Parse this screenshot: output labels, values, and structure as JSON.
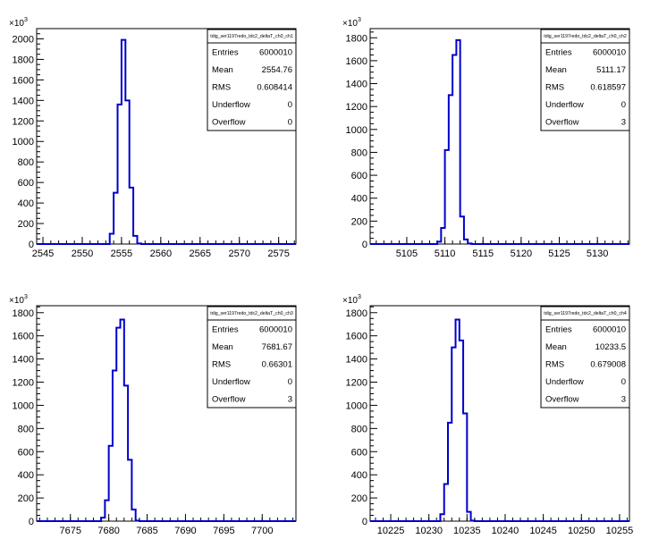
{
  "chart_data": [
    {
      "type": "histogram",
      "title": "tdig_ser1197redo_tdc2_deltaT_ch0_ch1",
      "y_multiplier_label": "×10",
      "y_multiplier_exp": "3",
      "xlim": [
        2544.2,
        2577.2
      ],
      "ylim": [
        0,
        2100
      ],
      "bin_width": 0.5,
      "x_ticks": [
        2545,
        2550,
        2555,
        2560,
        2565,
        2570,
        2575
      ],
      "x_minor_step": 1,
      "y_ticks": [
        0,
        200,
        400,
        600,
        800,
        1000,
        1200,
        1400,
        1600,
        1800,
        2000
      ],
      "bins": [
        {
          "x": 2553.0,
          "y": 0
        },
        {
          "x": 2553.5,
          "y": 100
        },
        {
          "x": 2554.0,
          "y": 500
        },
        {
          "x": 2554.5,
          "y": 1360
        },
        {
          "x": 2555.0,
          "y": 1990
        },
        {
          "x": 2555.5,
          "y": 1400
        },
        {
          "x": 2556.0,
          "y": 550
        },
        {
          "x": 2556.5,
          "y": 80
        },
        {
          "x": 2557.0,
          "y": 5
        },
        {
          "x": 2557.5,
          "y": 0
        }
      ],
      "stats": [
        {
          "label": "Entries",
          "value": "6000010"
        },
        {
          "label": "Mean",
          "value": "2554.76"
        },
        {
          "label": "RMS",
          "value": "0.608414"
        },
        {
          "label": "Underflow",
          "value": "0"
        },
        {
          "label": "Overflow",
          "value": "0"
        }
      ],
      "line_color": "#0000cc"
    },
    {
      "type": "histogram",
      "title": "tdig_ser1197redo_tdc2_deltaT_ch0_ch2",
      "y_multiplier_label": "×10",
      "y_multiplier_exp": "3",
      "xlim": [
        5100.2,
        5134.2
      ],
      "ylim": [
        0,
        1880
      ],
      "bin_width": 0.5,
      "x_ticks": [
        5105,
        5110,
        5115,
        5120,
        5125,
        5130
      ],
      "x_minor_step": 1,
      "y_ticks": [
        0,
        200,
        400,
        600,
        800,
        1000,
        1200,
        1400,
        1600,
        1800
      ],
      "bins": [
        {
          "x": 5108.5,
          "y": 0
        },
        {
          "x": 5109.0,
          "y": 20
        },
        {
          "x": 5109.5,
          "y": 140
        },
        {
          "x": 5110.0,
          "y": 820
        },
        {
          "x": 5110.5,
          "y": 1300
        },
        {
          "x": 5111.0,
          "y": 1650
        },
        {
          "x": 5111.5,
          "y": 1780
        },
        {
          "x": 5112.0,
          "y": 240
        },
        {
          "x": 5112.5,
          "y": 40
        },
        {
          "x": 5113.0,
          "y": 5
        },
        {
          "x": 5113.5,
          "y": 0
        }
      ],
      "stats": [
        {
          "label": "Entries",
          "value": "6000010"
        },
        {
          "label": "Mean",
          "value": "5111.17"
        },
        {
          "label": "RMS",
          "value": "0.618597"
        },
        {
          "label": "Underflow",
          "value": "0"
        },
        {
          "label": "Overflow",
          "value": "3"
        }
      ],
      "line_color": "#0000cc"
    },
    {
      "type": "histogram",
      "title": "tdig_ser1197redo_tdc2_deltaT_ch0_ch3",
      "y_multiplier_label": "×10",
      "y_multiplier_exp": "3",
      "xlim": [
        7670.6,
        7704.4
      ],
      "ylim": [
        0,
        1860
      ],
      "bin_width": 0.5,
      "x_ticks": [
        7675,
        7680,
        7685,
        7690,
        7695,
        7700
      ],
      "x_minor_step": 1,
      "y_ticks": [
        0,
        200,
        400,
        600,
        800,
        1000,
        1200,
        1400,
        1600,
        1800
      ],
      "bins": [
        {
          "x": 7678.5,
          "y": 0
        },
        {
          "x": 7679.0,
          "y": 30
        },
        {
          "x": 7679.5,
          "y": 180
        },
        {
          "x": 7680.0,
          "y": 650
        },
        {
          "x": 7680.5,
          "y": 1300
        },
        {
          "x": 7681.0,
          "y": 1670
        },
        {
          "x": 7681.5,
          "y": 1740
        },
        {
          "x": 7682.0,
          "y": 1170
        },
        {
          "x": 7682.5,
          "y": 530
        },
        {
          "x": 7683.0,
          "y": 100
        },
        {
          "x": 7683.5,
          "y": 5
        },
        {
          "x": 7684.0,
          "y": 0
        }
      ],
      "stats": [
        {
          "label": "Entries",
          "value": "6000010"
        },
        {
          "label": "Mean",
          "value": "7681.67"
        },
        {
          "label": "RMS",
          "value": "0.66301"
        },
        {
          "label": "Underflow",
          "value": "0"
        },
        {
          "label": "Overflow",
          "value": "3"
        }
      ],
      "line_color": "#0000cc"
    },
    {
      "type": "histogram",
      "title": "tdig_ser1197redo_tdc2_deltaT_ch0_ch4",
      "y_multiplier_label": "×10",
      "y_multiplier_exp": "3",
      "xlim": [
        10222.3,
        10256.3
      ],
      "ylim": [
        0,
        1860
      ],
      "bin_width": 0.5,
      "x_ticks": [
        10225,
        10230,
        10235,
        10240,
        10245,
        10250,
        10255
      ],
      "x_minor_step": 1,
      "y_ticks": [
        0,
        200,
        400,
        600,
        800,
        1000,
        1200,
        1400,
        1600,
        1800
      ],
      "bins": [
        {
          "x": 10231.0,
          "y": 0
        },
        {
          "x": 10231.5,
          "y": 60
        },
        {
          "x": 10232.0,
          "y": 320
        },
        {
          "x": 10232.5,
          "y": 850
        },
        {
          "x": 10233.0,
          "y": 1500
        },
        {
          "x": 10233.5,
          "y": 1740
        },
        {
          "x": 10234.0,
          "y": 1560
        },
        {
          "x": 10234.5,
          "y": 930
        },
        {
          "x": 10235.0,
          "y": 80
        },
        {
          "x": 10235.5,
          "y": 5
        },
        {
          "x": 10236.0,
          "y": 0
        }
      ],
      "stats": [
        {
          "label": "Entries",
          "value": "6000010"
        },
        {
          "label": "Mean",
          "value": "10233.5"
        },
        {
          "label": "RMS",
          "value": "0.679008"
        },
        {
          "label": "Underflow",
          "value": "0"
        },
        {
          "label": "Overflow",
          "value": "3"
        }
      ],
      "line_color": "#0000cc"
    }
  ]
}
